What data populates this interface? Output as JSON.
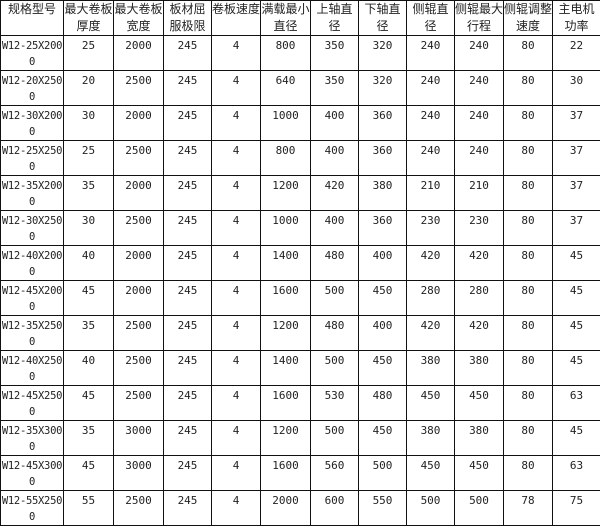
{
  "headers": [
    "规格型号",
    "最大卷板厚度",
    "最大卷板宽度",
    "板材屈服极限",
    "卷板速度",
    "满载最小直径",
    "上轴直径",
    "下轴直径",
    "侧辊直径",
    "侧辊最大行程",
    "侧辊调整速度",
    "主电机功率"
  ],
  "rows": [
    [
      "W12-25X2000",
      "25",
      "2000",
      "245",
      "4",
      "800",
      "350",
      "320",
      "240",
      "240",
      "80",
      "22"
    ],
    [
      "W12-20X2500",
      "20",
      "2500",
      "245",
      "4",
      "640",
      "350",
      "320",
      "240",
      "240",
      "80",
      "30"
    ],
    [
      "W12-30X2000",
      "30",
      "2000",
      "245",
      "4",
      "1000",
      "400",
      "360",
      "240",
      "240",
      "80",
      "37"
    ],
    [
      "W12-25X2500",
      "25",
      "2500",
      "245",
      "4",
      "800",
      "400",
      "360",
      "240",
      "240",
      "80",
      "37"
    ],
    [
      "W12-35X2000",
      "35",
      "2000",
      "245",
      "4",
      "1200",
      "420",
      "380",
      "210",
      "210",
      "80",
      "37"
    ],
    [
      "W12-30X2500",
      "30",
      "2500",
      "245",
      "4",
      "1000",
      "400",
      "360",
      "230",
      "230",
      "80",
      "37"
    ],
    [
      "W12-40X2000",
      "40",
      "2000",
      "245",
      "4",
      "1400",
      "480",
      "400",
      "420",
      "420",
      "80",
      "45"
    ],
    [
      "W12-45X2000",
      "45",
      "2000",
      "245",
      "4",
      "1600",
      "500",
      "450",
      "280",
      "280",
      "80",
      "45"
    ],
    [
      "W12-35X2500",
      "35",
      "2500",
      "245",
      "4",
      "1200",
      "480",
      "400",
      "420",
      "420",
      "80",
      "45"
    ],
    [
      "W12-40X2500",
      "40",
      "2500",
      "245",
      "4",
      "1400",
      "500",
      "450",
      "380",
      "380",
      "80",
      "45"
    ],
    [
      "W12-45X2500",
      "45",
      "2500",
      "245",
      "4",
      "1600",
      "530",
      "480",
      "450",
      "450",
      "80",
      "63"
    ],
    [
      "W12-35X3000",
      "35",
      "3000",
      "245",
      "4",
      "1200",
      "500",
      "450",
      "380",
      "380",
      "80",
      "45"
    ],
    [
      "W12-45X3000",
      "45",
      "3000",
      "245",
      "4",
      "1600",
      "560",
      "500",
      "450",
      "450",
      "80",
      "63"
    ],
    [
      "W12-55X2500",
      "55",
      "2500",
      "245",
      "4",
      "2000",
      "600",
      "550",
      "500",
      "500",
      "78",
      "75"
    ]
  ]
}
